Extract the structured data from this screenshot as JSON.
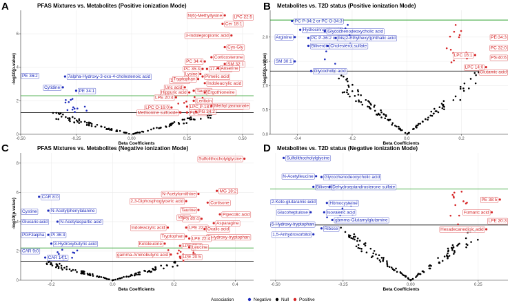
{
  "chart_data": [
    {
      "letter": "A",
      "type": "scatter",
      "title": "PFAS Mixtures vs. Metabolites (Positive ionization Mode)",
      "xlabel": "Beta Coefficients",
      "ylabel": "-log10(p.value)",
      "xlim": [
        -0.5,
        0.55
      ],
      "ylim": [
        0,
        7.4
      ],
      "xticks": [
        -0.5,
        -0.25,
        0,
        0.25,
        0.5
      ],
      "xtick_labels": [
        "-0.50",
        "-0.25",
        "0.00",
        "0.25",
        "0.50"
      ],
      "yticks": [
        0,
        2,
        4,
        6
      ],
      "hlines": {
        "black": 1.3,
        "green": 2.3
      },
      "labeled_points": [
        {
          "label": "N(6)-Methyllysine",
          "x": 0.42,
          "y": 7.1,
          "assoc": "Positive",
          "side": "left"
        },
        {
          "label": "LPC 22:5",
          "x": 0.51,
          "y": 7.0,
          "assoc": "Positive",
          "side": "right"
        },
        {
          "label": "Cer 18:1",
          "x": 0.41,
          "y": 6.6,
          "assoc": "Positive",
          "side": "right"
        },
        {
          "label": "3-Indolepropionic acid",
          "x": 0.45,
          "y": 5.9,
          "assoc": "Positive",
          "side": "left"
        },
        {
          "label": "Cys-Gly",
          "x": 0.42,
          "y": 5.2,
          "assoc": "Positive",
          "side": "right"
        },
        {
          "label": "Corticosterone",
          "x": 0.36,
          "y": 4.6,
          "assoc": "Positive",
          "side": "right"
        },
        {
          "label": "PC 34:4",
          "x": 0.33,
          "y": 4.35,
          "assoc": "Positive",
          "side": "left"
        },
        {
          "label": "SM 32:1",
          "x": 0.42,
          "y": 4.2,
          "assoc": "Positive",
          "side": "right"
        },
        {
          "label": "PC 35:3",
          "x": 0.32,
          "y": 3.9,
          "assoc": "Positive",
          "side": "left"
        },
        {
          "label": "17-HDoHE",
          "x": 0.34,
          "y": 3.9,
          "assoc": "Positive",
          "side": "right"
        },
        {
          "label": "Anserine",
          "x": 0.39,
          "y": 3.95,
          "assoc": "Positive",
          "side": "right"
        },
        {
          "label": "Lysine",
          "x": 0.31,
          "y": 3.6,
          "assoc": "Positive",
          "side": "left"
        },
        {
          "label": "Pimelic acid",
          "x": 0.32,
          "y": 3.45,
          "assoc": "Positive",
          "side": "right"
        },
        {
          "label": "12-HEPE",
          "x": 0.27,
          "y": 3.2,
          "assoc": "Positive",
          "side": "left"
        },
        {
          "label": "Tryptophan",
          "x": 0.3,
          "y": 3.3,
          "assoc": "Positive",
          "side": "left"
        },
        {
          "label": "Indoleacrylic acid",
          "x": 0.33,
          "y": 3.05,
          "assoc": "Positive",
          "side": "right"
        },
        {
          "label": "Uric acid",
          "x": 0.24,
          "y": 2.8,
          "assoc": "Positive",
          "side": "left"
        },
        {
          "label": "Taurine",
          "x": 0.28,
          "y": 2.6,
          "assoc": "Positive",
          "side": "right"
        },
        {
          "label": "Hippuric acid",
          "x": 0.26,
          "y": 2.5,
          "assoc": "Positive",
          "side": "left"
        },
        {
          "label": "Ergothioneine",
          "x": 0.33,
          "y": 2.5,
          "assoc": "Positive",
          "side": "right"
        },
        {
          "label": "LPE 20:4",
          "x": 0.2,
          "y": 2.2,
          "assoc": "Positive",
          "side": "left"
        },
        {
          "label": "Lenticin",
          "x": 0.28,
          "y": 2.0,
          "assoc": "Positive",
          "side": "right"
        },
        {
          "label": "LPC O-16:0",
          "x": 0.18,
          "y": 1.6,
          "assoc": "Positive",
          "side": "left"
        },
        {
          "label": "LPC P-18:0 or LPC O-18:1",
          "x": 0.25,
          "y": 1.65,
          "assoc": "Positive",
          "side": "right"
        },
        {
          "label": "Methyl jasmonate",
          "x": 0.36,
          "y": 1.7,
          "assoc": "Positive",
          "side": "right"
        },
        {
          "label": "Methionine sulfoxide",
          "x": 0.22,
          "y": 1.3,
          "assoc": "Positive",
          "side": "left"
        },
        {
          "label": "Piperine",
          "x": 0.25,
          "y": 1.3,
          "assoc": "Positive",
          "side": "right"
        },
        {
          "label": "PG 34:2",
          "x": 0.29,
          "y": 1.35,
          "assoc": "Positive",
          "side": "right"
        },
        {
          "label": "PE 36:2",
          "x": -0.44,
          "y": 3.5,
          "assoc": "Negative",
          "side": "left"
        },
        {
          "label": "7alpha-Hydroxy-3-oxo-4-cholestenoic acid",
          "x": -0.3,
          "y": 3.45,
          "assoc": "Negative",
          "side": "right"
        },
        {
          "label": "Cytidine",
          "x": -0.31,
          "y": 2.8,
          "assoc": "Negative",
          "side": "left"
        },
        {
          "label": "PE 34:1",
          "x": -0.25,
          "y": 2.6,
          "assoc": "Negative",
          "side": "right"
        }
      ]
    },
    {
      "letter": "B",
      "type": "scatter",
      "title": "Metabolites vs. T2D status (Positive ionization Mode)",
      "xlabel": "Beta Coefficients",
      "ylabel": "-log10(p.value)",
      "xlim": [
        -0.5,
        0.37
      ],
      "ylim": [
        0,
        2.55
      ],
      "xticks": [
        -0.4,
        -0.2,
        0,
        0.2
      ],
      "xtick_labels": [
        "-0.4",
        "-0.2",
        "0.0",
        "0.2"
      ],
      "yticks": [
        0,
        0.5,
        1,
        1.5,
        2
      ],
      "ytick_labels": [
        "0.0",
        "0.5",
        "1.0",
        "1.5",
        "2.0"
      ],
      "hlines": {
        "black": 1.3,
        "green": 2.35
      },
      "labeled_points": [
        {
          "label": "PC P-34:2 or PC O-34:3",
          "x": -0.42,
          "y": 2.33,
          "assoc": "Negative",
          "side": "right"
        },
        {
          "label": "Hydrocinnamic acid",
          "x": -0.39,
          "y": 2.15,
          "assoc": "Negative",
          "side": "right"
        },
        {
          "label": "Glycochenodeoxycholic acid",
          "x": -0.3,
          "y": 2.12,
          "assoc": "Negative",
          "side": "right"
        },
        {
          "label": "Arginine",
          "x": -0.41,
          "y": 2.0,
          "assoc": "Negative",
          "side": "left"
        },
        {
          "label": "PC P-36:2 or PC O-36:3",
          "x": -0.36,
          "y": 1.98,
          "assoc": "Negative",
          "side": "right"
        },
        {
          "label": "bis(2-Ethylhexyl)phthalic acid",
          "x": -0.26,
          "y": 1.98,
          "assoc": "Negative",
          "side": "right"
        },
        {
          "label": "Biliverdin",
          "x": -0.36,
          "y": 1.82,
          "assoc": "Negative",
          "side": "right"
        },
        {
          "label": "Cholesterol sulfate",
          "x": -0.29,
          "y": 1.82,
          "assoc": "Negative",
          "side": "right"
        },
        {
          "label": "SM 30:1",
          "x": -0.41,
          "y": 1.5,
          "assoc": "Negative",
          "side": "left"
        },
        {
          "label": "Glycocholic acid",
          "x": -0.35,
          "y": 1.3,
          "assoc": "Negative",
          "side": "right"
        },
        {
          "label": "PE 34:3",
          "x": 0.33,
          "y": 2.0,
          "assoc": "Positive",
          "side": "right"
        },
        {
          "label": "PC 32:0",
          "x": 0.31,
          "y": 1.78,
          "assoc": "Positive",
          "side": "right"
        },
        {
          "label": "LPC 16:1",
          "x": 0.25,
          "y": 1.63,
          "assoc": "Positive",
          "side": "left"
        },
        {
          "label": "PS 40:6",
          "x": 0.33,
          "y": 1.58,
          "assoc": "Positive",
          "side": "right"
        },
        {
          "label": "LPC 14:0",
          "x": 0.29,
          "y": 1.38,
          "assoc": "Positive",
          "side": "left"
        },
        {
          "label": "Glutamic acid",
          "x": 0.31,
          "y": 1.28,
          "assoc": "Positive",
          "side": "right"
        }
      ]
    },
    {
      "letter": "C",
      "type": "scatter",
      "title": "PFAS Mixtures vs. Metabolites (Negative ionization Mode)",
      "xlabel": "Beta Coefficients",
      "ylabel": "-log10(p.value)",
      "xlim": [
        -0.3,
        0.46
      ],
      "ylim": [
        0,
        8.7
      ],
      "xticks": [
        -0.2,
        0,
        0.2,
        0.4
      ],
      "xtick_labels": [
        "-0.2",
        "0.0",
        "0.2",
        "0.4"
      ],
      "yticks": [
        0,
        2,
        4,
        6,
        8
      ],
      "hlines": {
        "black": 1.3,
        "green": 2.2
      },
      "labeled_points": [
        {
          "label": "Sulfolithocholylglycine",
          "x": 0.43,
          "y": 8.3,
          "assoc": "Positive",
          "side": "left"
        },
        {
          "label": "N-Acetylornithine",
          "x": 0.28,
          "y": 5.9,
          "assoc": "Positive",
          "side": "left"
        },
        {
          "label": "MG 18:2",
          "x": 0.34,
          "y": 6.1,
          "assoc": "Positive",
          "side": "right"
        },
        {
          "label": "2,3-Diphosphoglyceric acid",
          "x": 0.24,
          "y": 5.4,
          "assoc": "Positive",
          "side": "left"
        },
        {
          "label": "Cortisone",
          "x": 0.31,
          "y": 5.3,
          "assoc": "Positive",
          "side": "right"
        },
        {
          "label": "Taurine",
          "x": 0.28,
          "y": 4.8,
          "assoc": "Positive",
          "side": "left"
        },
        {
          "label": "Pipecolic acid",
          "x": 0.35,
          "y": 4.5,
          "assoc": "Positive",
          "side": "right"
        },
        {
          "label": "Valine",
          "x": 0.26,
          "y": 4.3,
          "assoc": "Positive",
          "side": "left"
        },
        {
          "label": "PS 40:4",
          "x": 0.29,
          "y": 4.2,
          "assoc": "Positive",
          "side": "left"
        },
        {
          "label": "Asparagine",
          "x": 0.33,
          "y": 3.9,
          "assoc": "Positive",
          "side": "right"
        },
        {
          "label": "Indoleacrylic acid",
          "x": 0.18,
          "y": 3.6,
          "assoc": "Positive",
          "side": "left"
        },
        {
          "label": "LPE 22:6",
          "x": 0.24,
          "y": 3.6,
          "assoc": "Positive",
          "side": "right"
        },
        {
          "label": "Oxalic acid",
          "x": 0.3,
          "y": 3.5,
          "assoc": "Positive",
          "side": "right"
        },
        {
          "label": "Tryptophan",
          "x": 0.24,
          "y": 3.0,
          "assoc": "Positive",
          "side": "left"
        },
        {
          "label": "5-Hydroxy-tryptophan",
          "x": 0.3,
          "y": 2.95,
          "assoc": "Positive",
          "side": "right"
        },
        {
          "label": "LPE 22:4",
          "x": 0.25,
          "y": 2.85,
          "assoc": "Positive",
          "side": "right"
        },
        {
          "label": "Ketoleucine",
          "x": 0.17,
          "y": 2.5,
          "assoc": "Positive",
          "side": "left"
        },
        {
          "label": "LPE 20:4",
          "x": 0.22,
          "y": 2.35,
          "assoc": "Positive",
          "side": "right"
        },
        {
          "label": "Leucine",
          "x": 0.25,
          "y": 2.25,
          "assoc": "Positive",
          "side": "right"
        },
        {
          "label": "gamma-Aminobutyric acid",
          "x": 0.19,
          "y": 1.75,
          "assoc": "Positive",
          "side": "left"
        },
        {
          "label": "LPE 20:5",
          "x": 0.22,
          "y": 1.6,
          "assoc": "Positive",
          "side": "right"
        },
        {
          "label": "CAR 8:0",
          "x": -0.24,
          "y": 5.7,
          "assoc": "Negative",
          "side": "right"
        },
        {
          "label": "Cystine",
          "x": -0.25,
          "y": 4.7,
          "assoc": "Negative",
          "side": "left"
        },
        {
          "label": "N-Acetylphenylalanine",
          "x": -0.21,
          "y": 4.75,
          "assoc": "Negative",
          "side": "right"
        },
        {
          "label": "Glucaric acid",
          "x": -0.24,
          "y": 4.0,
          "assoc": "Negative",
          "side": "left"
        },
        {
          "label": "N-Acetylaspartic acid",
          "x": -0.18,
          "y": 4.0,
          "assoc": "Negative",
          "side": "right"
        },
        {
          "label": "PGF2alpha",
          "x": -0.26,
          "y": 3.1,
          "assoc": "Negative",
          "side": "left"
        },
        {
          "label": "PI 36:3",
          "x": -0.21,
          "y": 3.1,
          "assoc": "Negative",
          "side": "right"
        },
        {
          "label": "3-Hydroxybutyric acid",
          "x": -0.2,
          "y": 2.5,
          "assoc": "Negative",
          "side": "right"
        },
        {
          "label": "CAR 9:0",
          "x": -0.25,
          "y": 2.0,
          "assoc": "Negative",
          "side": "left"
        },
        {
          "label": "CAR 14:1",
          "x": -0.22,
          "y": 1.55,
          "assoc": "Negative",
          "side": "right"
        }
      ]
    },
    {
      "letter": "D",
      "type": "scatter",
      "title": "Metabolites vs. T2D status (Negative ionization Mode)",
      "xlabel": "Beta Coefficients",
      "ylabel": "",
      "xlim": [
        -0.52,
        0.36
      ],
      "ylim": [
        0,
        3.0
      ],
      "xticks": [
        -0.5,
        -0.25,
        0,
        0.25
      ],
      "xtick_labels": [
        "-0.50",
        "-0.25",
        "0.00",
        "0.25"
      ],
      "yticks": [],
      "hlines": {
        "black": 1.3,
        "green": 2.15
      },
      "labeled_points": [
        {
          "label": "Sulfolithocholylglycine",
          "x": -0.47,
          "y": 2.88,
          "assoc": "Negative",
          "side": "right"
        },
        {
          "label": "N-Acetylleucine",
          "x": -0.35,
          "y": 2.45,
          "assoc": "Negative",
          "side": "left"
        },
        {
          "label": "Glycochenodeoxycholic acid",
          "x": -0.33,
          "y": 2.43,
          "assoc": "Negative",
          "side": "right"
        },
        {
          "label": "Biliverdin",
          "x": -0.36,
          "y": 2.2,
          "assoc": "Negative",
          "side": "right"
        },
        {
          "label": "Dehydroepiandrosterone sulfate",
          "x": -0.3,
          "y": 2.2,
          "assoc": "Negative",
          "side": "right"
        },
        {
          "label": "2-Keto-glutaramic acid",
          "x": -0.38,
          "y": 1.85,
          "assoc": "Negative",
          "side": "left"
        },
        {
          "label": "Homocysteine",
          "x": -0.31,
          "y": 1.82,
          "assoc": "Negative",
          "side": "right"
        },
        {
          "label": "Glucoheptulose",
          "x": -0.37,
          "y": 1.6,
          "assoc": "Negative",
          "side": "left"
        },
        {
          "label": "Isovaleric acid",
          "x": -0.32,
          "y": 1.6,
          "assoc": "Negative",
          "side": "right"
        },
        {
          "label": "gamma-Glutamylglutamine",
          "x": -0.29,
          "y": 1.42,
          "assoc": "Negative",
          "side": "right"
        },
        {
          "label": "5-Hydroxy-tryptophan",
          "x": -0.36,
          "y": 1.32,
          "assoc": "Negative",
          "side": "left"
        },
        {
          "label": "Ribose",
          "x": -0.33,
          "y": 1.22,
          "assoc": "Negative",
          "side": "right"
        },
        {
          "label": "1,5-Anhydrosorbitol",
          "x": -0.36,
          "y": 1.08,
          "assoc": "Negative",
          "side": "left"
        },
        {
          "label": "PE 38:5",
          "x": 0.33,
          "y": 1.9,
          "assoc": "Positive",
          "side": "left"
        },
        {
          "label": "Fumaric acid",
          "x": 0.3,
          "y": 1.6,
          "assoc": "Positive",
          "side": "left"
        },
        {
          "label": "LPE 20:3",
          "x": 0.33,
          "y": 1.4,
          "assoc": "Positive",
          "side": "right"
        },
        {
          "label": "Hexadecanedioic acid",
          "x": 0.28,
          "y": 1.2,
          "assoc": "Positive",
          "side": "left"
        }
      ]
    }
  ],
  "legend": {
    "title": "Association",
    "items": [
      {
        "label": "Negative",
        "color": "#1f2dbd"
      },
      {
        "label": "Null",
        "color": "#000000"
      },
      {
        "label": "Positive",
        "color": "#d62728"
      }
    ]
  },
  "colors": {
    "Negative": "#1f2dbd",
    "Null": "#000000",
    "Positive": "#d62728",
    "green_line": "#2ca02c",
    "black_line": "#000000"
  }
}
